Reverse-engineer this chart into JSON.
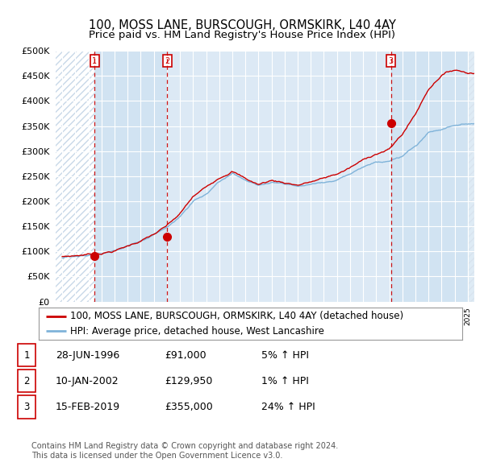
{
  "title": "100, MOSS LANE, BURSCOUGH, ORMSKIRK, L40 4AY",
  "subtitle": "Price paid vs. HM Land Registry's House Price Index (HPI)",
  "legend_red": "100, MOSS LANE, BURSCOUGH, ORMSKIRK, L40 4AY (detached house)",
  "legend_blue": "HPI: Average price, detached house, West Lancashire",
  "footer1": "Contains HM Land Registry data © Crown copyright and database right 2024.",
  "footer2": "This data is licensed under the Open Government Licence v3.0.",
  "sales": [
    {
      "num": 1,
      "date": "28-JUN-1996",
      "year": 1996.49,
      "price": 91000,
      "hpi_pct": "5% ↑ HPI"
    },
    {
      "num": 2,
      "date": "10-JAN-2002",
      "year": 2002.03,
      "price": 129950,
      "hpi_pct": "1% ↑ HPI"
    },
    {
      "num": 3,
      "date": "15-FEB-2019",
      "year": 2019.12,
      "price": 355000,
      "hpi_pct": "24% ↑ HPI"
    }
  ],
  "xlim": [
    1993.5,
    2025.5
  ],
  "ylim": [
    0,
    500000
  ],
  "yticks": [
    0,
    50000,
    100000,
    150000,
    200000,
    250000,
    300000,
    350000,
    400000,
    450000,
    500000
  ],
  "background_color": "#ffffff",
  "plot_bg_color": "#dce9f5",
  "grid_color": "#ffffff",
  "red_line_color": "#cc0000",
  "blue_line_color": "#7fb3d9",
  "dashed_line_color": "#cc0000",
  "marker_color": "#cc0000",
  "hatch_color": "#c8d8e8",
  "title_fontsize": 10.5,
  "subtitle_fontsize": 9.5,
  "legend_fontsize": 8.5,
  "footer_fontsize": 7.0,
  "key_years_blue": [
    1994,
    1995,
    1996,
    1997,
    1998,
    1999,
    2000,
    2001,
    2002,
    2003,
    2004,
    2005,
    2006,
    2007,
    2008,
    2009,
    2010,
    2011,
    2012,
    2013,
    2014,
    2015,
    2016,
    2017,
    2018,
    2019,
    2020,
    2021,
    2022,
    2023,
    2024,
    2025
  ],
  "key_vals_blue": [
    87000,
    90000,
    93000,
    96000,
    100000,
    108000,
    118000,
    130000,
    145000,
    165000,
    196000,
    215000,
    235000,
    252000,
    238000,
    228000,
    235000,
    232000,
    228000,
    233000,
    238000,
    245000,
    255000,
    268000,
    280000,
    283000,
    290000,
    310000,
    338000,
    345000,
    352000,
    355000
  ],
  "key_years_red": [
    1994,
    1995,
    1996,
    1997,
    1998,
    1999,
    2000,
    2001,
    2002,
    2003,
    2004,
    2005,
    2006,
    2007,
    2008,
    2009,
    2010,
    2011,
    2012,
    2013,
    2014,
    2015,
    2016,
    2017,
    2018,
    2019,
    2020,
    2021,
    2022,
    2023,
    2024,
    2025
  ],
  "key_vals_red": [
    90000,
    92000,
    95000,
    98000,
    103000,
    112000,
    123000,
    135000,
    150000,
    172000,
    205000,
    223000,
    244000,
    260000,
    244000,
    232000,
    240000,
    236000,
    232000,
    238000,
    244000,
    252000,
    264000,
    278000,
    292000,
    300000,
    330000,
    370000,
    420000,
    450000,
    460000,
    455000
  ]
}
